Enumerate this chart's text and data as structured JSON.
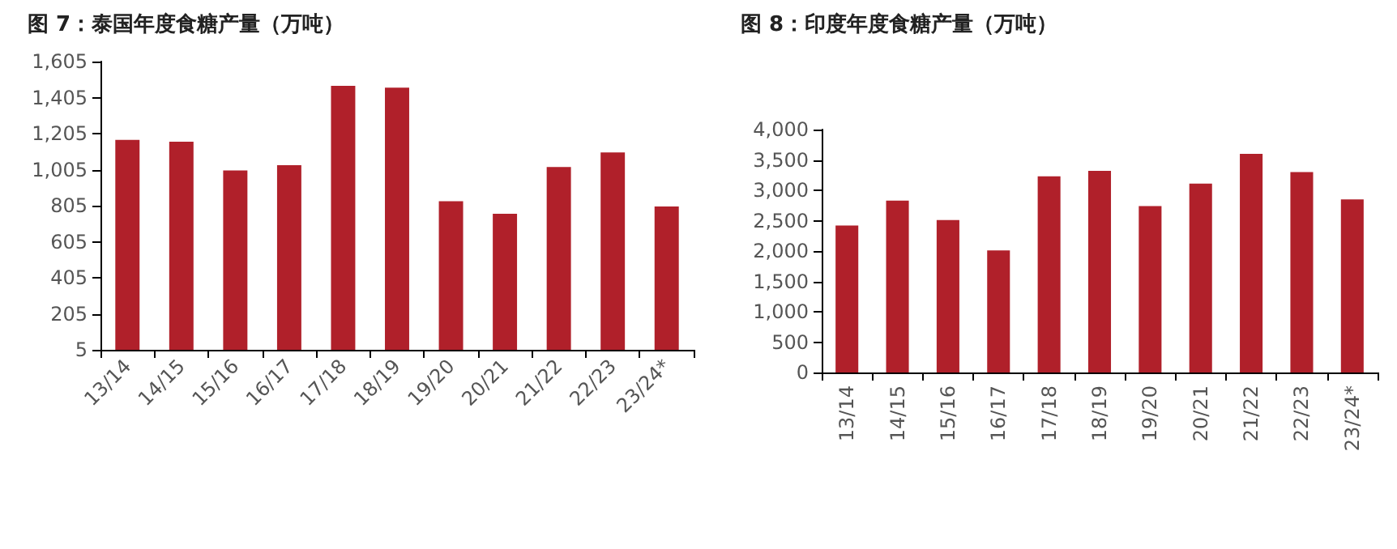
{
  "chart_data": [
    {
      "type": "bar",
      "title": "图 7：泰国年度食糖产量（万吨）",
      "categories": [
        "13/14",
        "14/15",
        "15/16",
        "16/17",
        "17/18",
        "18/19",
        "19/20",
        "20/21",
        "21/22",
        "22/23",
        "23/24*"
      ],
      "values": [
        1170,
        1160,
        1000,
        1030,
        1470,
        1460,
        830,
        760,
        1020,
        1100,
        800
      ],
      "color": "#b0202a",
      "ylim": [
        5,
        1605
      ],
      "yticks": [
        5,
        205,
        405,
        605,
        805,
        {
          "value": 1005,
          "label": "1,005"
        },
        {
          "value": 1205,
          "label": "1,205"
        },
        {
          "value": 1405,
          "label": "1,405"
        },
        {
          "value": 1605,
          "label": "1,605"
        }
      ],
      "grid": false
    },
    {
      "type": "bar",
      "title": "图 8：印度年度食糖产量（万吨）",
      "categories": [
        "13/14",
        "14/15",
        "15/16",
        "16/17",
        "17/18",
        "18/19",
        "19/20",
        "20/21",
        "21/22",
        "22/23",
        "23/24*"
      ],
      "values": [
        2420,
        2830,
        2510,
        2010,
        3230,
        3320,
        2740,
        3110,
        3600,
        3300,
        2850
      ],
      "color": "#b0202a",
      "ylim": [
        0,
        4000
      ],
      "yticks": [
        0,
        500,
        {
          "value": 1000,
          "label": "1,000"
        },
        {
          "value": 1500,
          "label": "1,500"
        },
        {
          "value": 2000,
          "label": "2,000"
        },
        {
          "value": 2500,
          "label": "2,500"
        },
        {
          "value": 3000,
          "label": "3,000"
        },
        {
          "value": 3500,
          "label": "3,500"
        },
        {
          "value": 4000,
          "label": "4,000"
        }
      ],
      "grid": false
    }
  ]
}
